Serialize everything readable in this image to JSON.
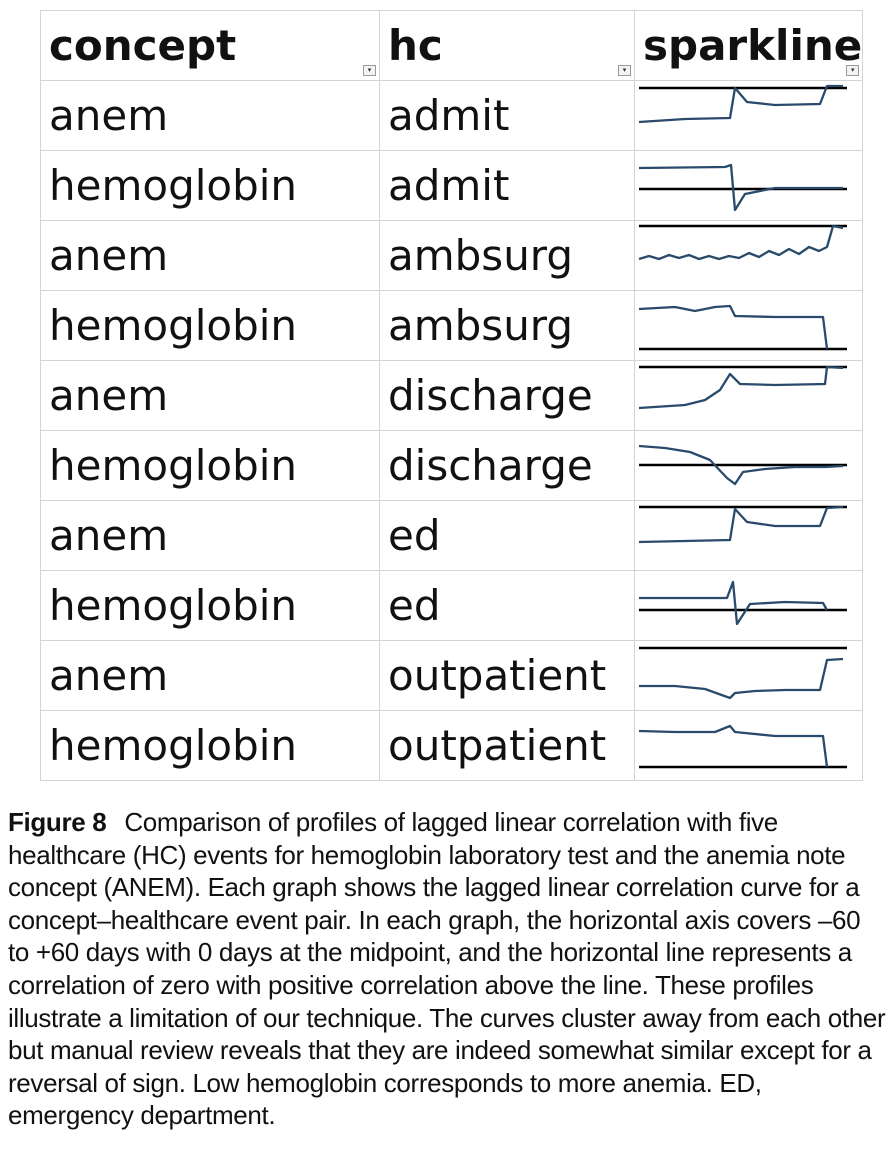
{
  "table": {
    "headers": [
      "concept",
      "hc",
      "sparkline"
    ],
    "rows": [
      {
        "concept": "anem",
        "hc": "admit"
      },
      {
        "concept": "hemoglobin",
        "hc": "admit"
      },
      {
        "concept": "anem",
        "hc": "ambsurg"
      },
      {
        "concept": "hemoglobin",
        "hc": "ambsurg"
      },
      {
        "concept": "anem",
        "hc": "discharge"
      },
      {
        "concept": "hemoglobin",
        "hc": "discharge"
      },
      {
        "concept": "anem",
        "hc": "ed"
      },
      {
        "concept": "hemoglobin",
        "hc": "ed"
      },
      {
        "concept": "anem",
        "hc": "outpatient"
      },
      {
        "concept": "hemoglobin",
        "hc": "outpatient"
      }
    ]
  },
  "caption": {
    "label": "Figure 8",
    "text": "Comparison of profiles of lagged linear correlation with five healthcare (HC) events for hemoglobin laboratory test and the anemia note concept (ANEM). Each graph shows the lagged linear correlation curve for a concept–healthcare event pair. In each graph, the horizontal axis covers –60 to +60 days with 0 days at the midpoint, and the horizontal line represents a correlation of zero with positive correlation above the line. These profiles illustrate a limitation of our technique. The curves cluster away from each other but manual review reveals that they are indeed somewhat similar except for a reversal of sign. Low hemoglobin corresponds to more anemia. ED, emergency department."
  },
  "colors": {
    "sparkline": "#2a4a6b",
    "zero_line": "#000000",
    "grid_border": "#d4d4d4"
  },
  "icons": [
    "filter-dropdown-icon"
  ]
}
